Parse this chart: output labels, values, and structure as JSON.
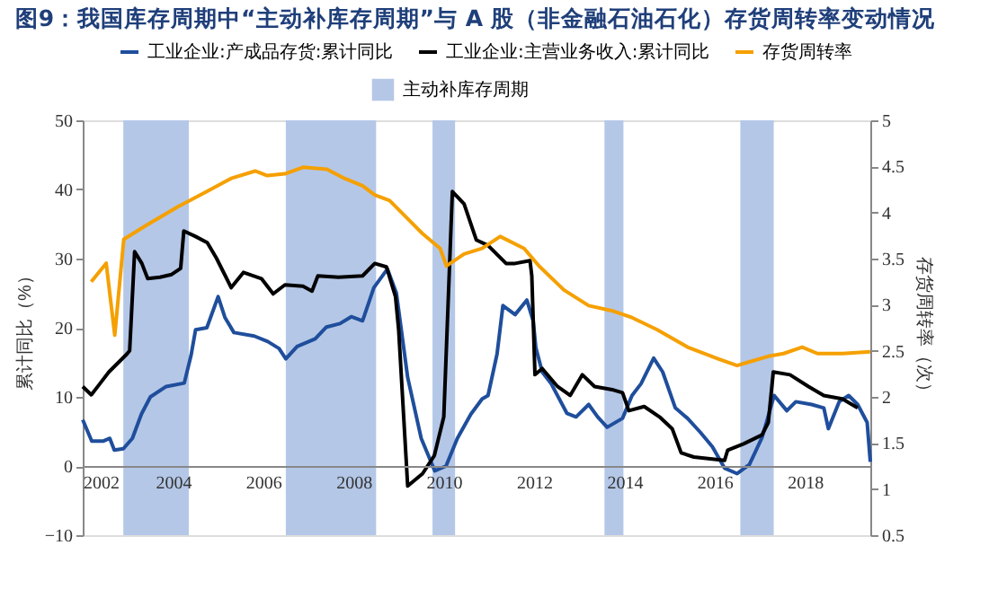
{
  "chart_data": {
    "type": "line",
    "title": "图9：我国库存周期中“主动补库存周期”与 A 股（非金融石油石化）存货周转率变动情况",
    "ylabel": "累计同比（%）",
    "y2label": "存货周转率（次）",
    "legend": "top",
    "grid": false,
    "xlim": [
      2002,
      2019.45
    ],
    "xticks": [
      2002,
      2004,
      2006,
      2008,
      2010,
      2012,
      2014,
      2016,
      2018
    ],
    "ylim": [
      -10,
      50
    ],
    "yticks": [
      -10,
      0,
      10,
      20,
      30,
      40,
      50
    ],
    "y2lim": [
      0.5,
      5
    ],
    "y2ticks": [
      0.5,
      1,
      1.5,
      2,
      2.5,
      3,
      3.5,
      4,
      4.5,
      5
    ],
    "series": [
      {
        "name": "工业企业:产成品存货:累计同比",
        "color": "#1f4e9c",
        "x": [
          2002.0,
          2002.2,
          2002.45,
          2002.6,
          2002.7,
          2002.9,
          2003.1,
          2003.3,
          2003.5,
          2003.85,
          2004.25,
          2004.4,
          2004.5,
          2004.75,
          2005.0,
          2005.15,
          2005.35,
          2005.8,
          2006.1,
          2006.35,
          2006.5,
          2006.75,
          2007.15,
          2007.4,
          2007.7,
          2007.95,
          2008.2,
          2008.45,
          2008.75,
          2008.95,
          2009.2,
          2009.5,
          2009.8,
          2010.05,
          2010.3,
          2010.6,
          2010.85,
          2010.98,
          2011.18,
          2011.31,
          2011.58,
          2011.84,
          2011.98,
          2012.04,
          2012.18,
          2012.38,
          2012.73,
          2012.93,
          2013.21,
          2013.41,
          2013.62,
          2013.96,
          2014.17,
          2014.37,
          2014.65,
          2014.85,
          2015.13,
          2015.4,
          2015.68,
          2015.95,
          2016.22,
          2016.5,
          2016.77,
          2017.05,
          2017.32,
          2017.6,
          2017.8,
          2018.15,
          2018.42,
          2018.52,
          2018.76,
          2018.97,
          2019.17,
          2019.38,
          2019.45
        ],
        "values": [
          6.7,
          3.6,
          3.6,
          4,
          2.3,
          2.5,
          4,
          7.5,
          10,
          11.5,
          12,
          16,
          19.7,
          20,
          24.5,
          21.5,
          19.3,
          18.8,
          18,
          17,
          15.5,
          17.3,
          18.4,
          20.1,
          20.6,
          21.6,
          21,
          25.8,
          28.5,
          25,
          12.8,
          4,
          -0.7,
          0,
          4,
          7.5,
          9.7,
          10.2,
          16.2,
          23.2,
          21.9,
          24.0,
          21.0,
          17.1,
          13.6,
          11.9,
          7.6,
          7.1,
          8.9,
          7.1,
          5.6,
          6.9,
          10.2,
          11.9,
          15.6,
          13.6,
          8.4,
          6.9,
          4.9,
          2.8,
          -0.3,
          -1.1,
          0.2,
          4.1,
          10.2,
          8.0,
          9.3,
          8.9,
          8.4,
          5.4,
          9.3,
          10.2,
          8.9,
          6.3,
          0.6
        ]
      },
      {
        "name": "工业企业:主营业务收入:累计同比",
        "color": "#000000",
        "x": [
          2002.0,
          2002.19,
          2002.38,
          2002.58,
          2002.78,
          2002.98,
          2003.04,
          2003.15,
          2003.31,
          2003.44,
          2003.71,
          2003.97,
          2004.17,
          2004.24,
          2004.5,
          2004.76,
          2004.96,
          2005.16,
          2005.29,
          2005.56,
          2005.96,
          2006.22,
          2006.48,
          2006.88,
          2007.08,
          2007.21,
          2007.67,
          2008.2,
          2008.47,
          2008.73,
          2008.93,
          2009.0,
          2009.2,
          2009.53,
          2009.79,
          2010.0,
          2010.19,
          2010.45,
          2010.72,
          2010.98,
          2011.38,
          2011.58,
          2011.91,
          2011.95,
          2012.02,
          2012.18,
          2012.52,
          2012.8,
          2013.07,
          2013.34,
          2013.76,
          2013.96,
          2014.1,
          2014.44,
          2014.78,
          2015.06,
          2015.26,
          2015.54,
          2015.95,
          2016.22,
          2016.29,
          2016.64,
          2017.05,
          2017.19,
          2017.3,
          2017.67,
          2018.08,
          2018.42,
          2018.83,
          2019.17
        ],
        "values": [
          11.5,
          10.3,
          11.9,
          13.6,
          14.9,
          16.2,
          16.7,
          31.0,
          29.3,
          27.1,
          27.3,
          27.7,
          28.6,
          34.0,
          33.2,
          32.3,
          30.1,
          27.5,
          25.8,
          28.0,
          27.1,
          24.9,
          26.2,
          26.0,
          25.3,
          27.5,
          27.3,
          27.5,
          29.3,
          28.8,
          24.5,
          19.7,
          -2.9,
          -1.1,
          1.5,
          7.1,
          39.7,
          37.9,
          32.7,
          31.9,
          29.3,
          29.3,
          29.7,
          27.5,
          13.2,
          14.1,
          11.5,
          10.2,
          13.2,
          11.5,
          11.0,
          10.6,
          8.0,
          8.6,
          7.1,
          5.4,
          1.9,
          1.3,
          1.0,
          0.8,
          2.3,
          3.2,
          4.5,
          6.3,
          13.6,
          13.2,
          11.5,
          10.2,
          9.7,
          8.4
        ]
      },
      {
        "name": "存货周转率",
        "color": "#f5a000",
        "axis": "y2",
        "x": [
          2002.19,
          2002.52,
          2002.71,
          2002.91,
          2003.44,
          2004.1,
          2004.76,
          2005.29,
          2005.82,
          2006.09,
          2006.48,
          2006.88,
          2007.41,
          2007.8,
          2008.2,
          2008.47,
          2008.8,
          2009.53,
          2009.92,
          2010.06,
          2010.45,
          2010.85,
          2011.25,
          2011.78,
          2012.11,
          2012.66,
          2013.21,
          2013.76,
          2014.17,
          2014.72,
          2015.4,
          2016.09,
          2016.5,
          2016.77,
          2017.19,
          2017.53,
          2017.94,
          2018.28,
          2018.83,
          2019.45
        ],
        "values": [
          3.25,
          3.45,
          2.67,
          3.71,
          3.87,
          4.06,
          4.23,
          4.37,
          4.45,
          4.4,
          4.42,
          4.49,
          4.47,
          4.37,
          4.29,
          4.19,
          4.13,
          3.77,
          3.61,
          3.42,
          3.55,
          3.61,
          3.74,
          3.61,
          3.42,
          3.16,
          2.99,
          2.93,
          2.86,
          2.73,
          2.54,
          2.41,
          2.34,
          2.38,
          2.44,
          2.47,
          2.54,
          2.47,
          2.47,
          2.49
        ]
      }
    ],
    "bands": [
      {
        "axis": "x",
        "from": 2002.9,
        "to": 2004.35,
        "label": "主动补库存周期",
        "color": "#b4c7e7"
      },
      {
        "axis": "x",
        "from": 2006.5,
        "to": 2008.5,
        "color": "#b4c7e7"
      },
      {
        "axis": "x",
        "from": 2009.75,
        "to": 2010.25,
        "color": "#b4c7e7"
      },
      {
        "axis": "x",
        "from": 2013.56,
        "to": 2013.98,
        "color": "#b4c7e7"
      },
      {
        "axis": "x",
        "from": 2016.57,
        "to": 2017.31,
        "color": "#b4c7e7"
      }
    ]
  }
}
